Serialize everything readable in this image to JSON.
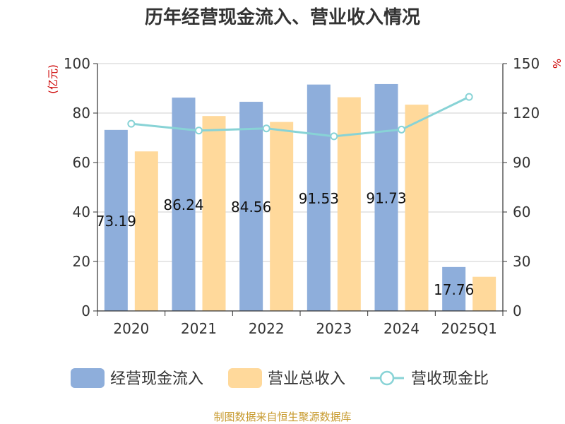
{
  "chart_data": {
    "type": "bar",
    "title": "历年经营现金流入、营业收入情况",
    "categories": [
      "2020",
      "2021",
      "2022",
      "2023",
      "2024",
      "2025Q1"
    ],
    "y_left": {
      "unit": "(亿元)",
      "range": [
        0,
        100
      ],
      "ticks": [
        "0",
        "20",
        "40",
        "60",
        "80",
        "100"
      ]
    },
    "y_right": {
      "unit": "%",
      "range": [
        0,
        150
      ],
      "ticks": [
        "0",
        "30",
        "60",
        "90",
        "120",
        "150"
      ]
    },
    "series": [
      {
        "name": "经营现金流入",
        "type": "bar",
        "axis": "left",
        "color": "#8eaedb",
        "values": [
          73.19,
          86.24,
          84.56,
          91.53,
          91.73,
          17.76
        ],
        "labels": [
          "73.19",
          "86.24",
          "84.56",
          "91.53",
          "91.73",
          "17.76"
        ]
      },
      {
        "name": "营业总收入",
        "type": "bar",
        "axis": "left",
        "color": "#ffd99b",
        "values": [
          64.5,
          78.8,
          76.4,
          86.4,
          83.4,
          13.8
        ]
      },
      {
        "name": "营收现金比",
        "type": "line",
        "axis": "right",
        "color": "#88d3d6",
        "values": [
          113.5,
          109.4,
          110.7,
          105.9,
          110.0,
          129.8
        ]
      }
    ],
    "grid": true,
    "legend_position": "bottom",
    "source": "制图数据来自恒生聚源数据库"
  }
}
